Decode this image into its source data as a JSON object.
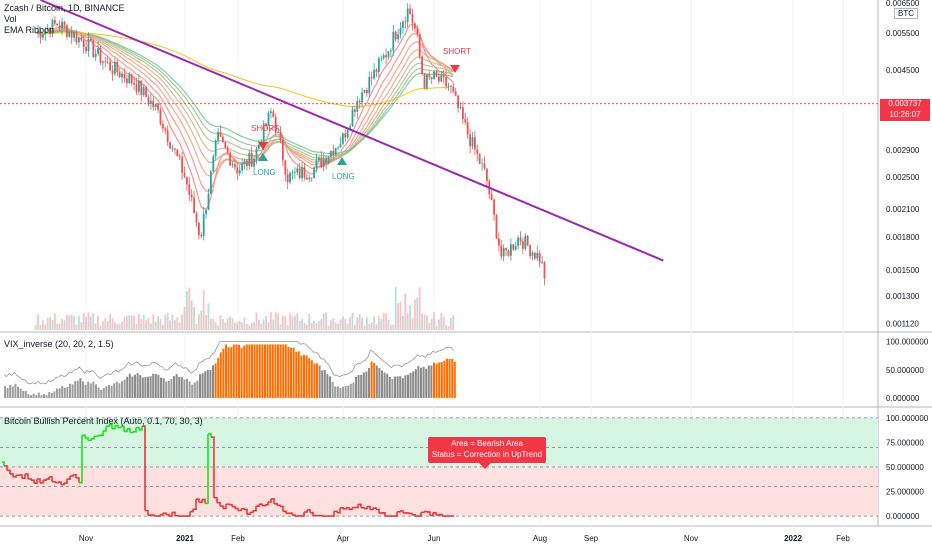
{
  "legend": {
    "main": "Zcash / Bitcoin, 1D, BINANCE",
    "vol": "Vol",
    "ema": "EMA Ribbon",
    "vix": "VIX_inverse (20, 20, 2, 1.5)",
    "bbpi": "Bitcoin Bullish Percent Index (Auto, 0.1, 70, 30, 3)"
  },
  "currency_badge": "BTC",
  "last_price": {
    "value": "0.003737",
    "countdown": "10:26:07"
  },
  "callout": {
    "line1": "Area = Bearish Area",
    "line2": "Status =  Correction in UpTrend"
  },
  "signals": [
    {
      "label": "SHORT",
      "kind": "short"
    },
    {
      "label": "SHORT",
      "kind": "short"
    },
    {
      "label": "LONG",
      "kind": "long"
    },
    {
      "label": "LONG",
      "kind": "long"
    }
  ],
  "colors": {
    "up": "#26a69a",
    "down": "#ef5350",
    "trendline": "#9c27b0",
    "bull_zone": "#d6f5e3",
    "bear_zone": "#fde0e0"
  },
  "chart_data": [
    {
      "type": "line",
      "title": "Zcash / Bitcoin, 1D, BINANCE",
      "y_scale": "log",
      "x_ticks": [
        "Nov",
        "2021",
        "Feb",
        "Apr",
        "Jun",
        "Aug",
        "Sep",
        "Nov",
        "2022",
        "Feb"
      ],
      "y_ticks": [
        "0.006500",
        "0.005500",
        "0.004500",
        "0.003737",
        "0.002900",
        "0.002500",
        "0.002100",
        "0.001800",
        "0.001500",
        "0.001300",
        "0.001120"
      ],
      "ylim": [
        0.00108,
        0.0066
      ],
      "series": [
        {
          "x": [
            "Oct 1",
            "Oct 15",
            "Nov 1",
            "Nov 15",
            "Dec 1",
            "Dec 15",
            "Jan 1",
            "Jan 10",
            "Jan 20",
            "Feb 1",
            "Feb 10",
            "Feb 20",
            "Mar 1",
            "Mar 15",
            "Apr 1",
            "Apr 10",
            "Apr 20",
            "May 1",
            "May 8",
            "May 15",
            "May 20",
            "May 25",
            "Jun 1",
            "Jun 10",
            "Jun 20",
            "Jul 1",
            "Jul 10",
            "Jul 20",
            "Aug 1",
            "Aug 5"
          ],
          "values": [
            0.0055,
            0.0058,
            0.0052,
            0.0046,
            0.0042,
            0.0036,
            0.0025,
            0.0018,
            0.0031,
            0.0026,
            0.0028,
            0.0036,
            0.0025,
            0.0026,
            0.0031,
            0.0038,
            0.0043,
            0.005,
            0.0057,
            0.0063,
            0.0055,
            0.0042,
            0.0043,
            0.0041,
            0.0032,
            0.0025,
            0.0016,
            0.0018,
            0.0016,
            0.0014
          ]
        }
      ],
      "trendline": {
        "from": [
          "Oct 4",
          0.0066
        ],
        "to": [
          "Jul 31",
          0.00155
        ]
      }
    },
    {
      "type": "bar",
      "title": "VIX_inverse (20, 20, 2, 1.5)",
      "y_ticks": [
        "100.000000",
        "50.000000",
        "0.000000"
      ],
      "ylim": [
        0,
        110
      ]
    },
    {
      "type": "line",
      "title": "Bitcoin Bullish Percent Index (Auto, 0.1, 70, 30, 3)",
      "y_ticks": [
        "100.000000",
        "75.000000",
        "50.000000",
        "25.000000",
        "0.000000"
      ],
      "ylim": [
        -5,
        105
      ],
      "levels": [
        100,
        70,
        50,
        30,
        0
      ]
    }
  ]
}
